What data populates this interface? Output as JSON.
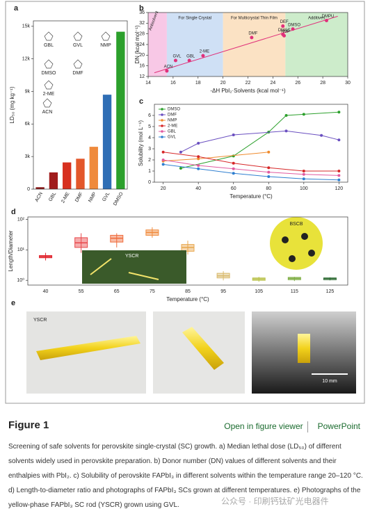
{
  "chart_data": [
    {
      "type": "bar",
      "panel": "a",
      "ylabel": "LD₅₀ (mg kg⁻¹)",
      "categories": [
        "ACN",
        "GBL",
        "2-ME",
        "DMF",
        "NMP",
        "GVL",
        "DMSO"
      ],
      "values": [
        175,
        1540,
        2460,
        2800,
        3900,
        8700,
        14500
      ],
      "colors": [
        "#8b1a1a",
        "#a01c1c",
        "#d7301f",
        "#e3572b",
        "#ef8a3c",
        "#2f6eb5",
        "#2ca02c"
      ],
      "ylim": [
        0,
        15500
      ],
      "yticks": [
        0,
        {
          "value": 3000,
          "label": "3k"
        },
        {
          "value": 6000,
          "label": "6k"
        },
        {
          "value": 9000,
          "label": "9k"
        },
        {
          "value": 12000,
          "label": "12k"
        },
        {
          "value": 15000,
          "label": "15k"
        }
      ],
      "structures": [
        "GBL",
        "GVL",
        "NMP",
        "DMSO",
        "DMF",
        "2-ME",
        "ACN"
      ]
    },
    {
      "type": "scatter",
      "panel": "b",
      "xlabel": "-ΔH PbI₂·Solvents (kcal mol⁻¹)",
      "ylabel": "DN (kcal mol⁻¹)",
      "xlim": [
        14,
        30
      ],
      "xticks": [
        14,
        16,
        18,
        20,
        22,
        24,
        26,
        28,
        30
      ],
      "ylim": [
        12,
        36
      ],
      "yticks": [
        12,
        16,
        20,
        24,
        28,
        32,
        36
      ],
      "regions": [
        {
          "label": "Antisolvent",
          "range": [
            14,
            15.5
          ],
          "color": "#f8c8e6"
        },
        {
          "label": "For Single Crystal",
          "range": [
            15.5,
            20
          ],
          "color": "#cfe0f5"
        },
        {
          "label": "For Multicrystal Thin Film",
          "range": [
            20,
            25
          ],
          "color": "#fbe2c4"
        },
        {
          "label": "Additives",
          "range": [
            25,
            30
          ],
          "color": "#cdeccb"
        }
      ],
      "color": "#e0307a",
      "points": {
        "labels": [
          "ACN",
          "GVL",
          "GBL",
          "2-ME",
          "DMF",
          "DEF",
          "DMAC",
          "NMP",
          "DMSO",
          "DMPU"
        ],
        "x": [
          15.5,
          16.2,
          17.3,
          18.4,
          22.3,
          24.8,
          24.8,
          24.9,
          25.6,
          28.3
        ],
        "y": [
          14.1,
          18,
          18,
          19.8,
          26.6,
          30.9,
          27.8,
          27.3,
          29.8,
          33
        ]
      },
      "fit": {
        "x": [
          14.5,
          29.2
        ],
        "y": [
          13.4,
          34.6
        ]
      }
    },
    {
      "type": "line",
      "panel": "c",
      "xlabel": "Temperature (°C)",
      "ylabel": "Solubility (mol L⁻¹)",
      "xlim": [
        15,
        125
      ],
      "xticks": [
        20,
        40,
        60,
        80,
        100,
        120
      ],
      "ylim": [
        0,
        7
      ],
      "yticks": [
        0,
        1,
        2,
        3,
        4,
        5,
        6
      ],
      "legend": "top-left",
      "series": [
        {
          "name": "DMSO",
          "color": "#2ca02c",
          "x": [
            30,
            60,
            80,
            90,
            100,
            120
          ],
          "values": [
            1.25,
            2.35,
            4.5,
            6.0,
            6.1,
            6.3
          ]
        },
        {
          "name": "DMF",
          "color": "#6a4fc0",
          "x": [
            30,
            40,
            60,
            90,
            110,
            120
          ],
          "values": [
            2.7,
            3.5,
            4.25,
            4.6,
            4.2,
            3.8
          ]
        },
        {
          "name": "NMP",
          "color": "#ef8a2c",
          "x": [
            20,
            40,
            80
          ],
          "values": [
            1.9,
            2.1,
            2.7
          ]
        },
        {
          "name": "2-ME",
          "color": "#d62728",
          "x": [
            20,
            40,
            60,
            80,
            100,
            120
          ],
          "values": [
            2.7,
            2.3,
            1.7,
            1.3,
            1.0,
            1.0
          ]
        },
        {
          "name": "GBL",
          "color": "#e05aa0",
          "x": [
            20,
            40,
            60,
            80,
            100,
            120
          ],
          "values": [
            2.0,
            1.5,
            1.2,
            0.9,
            0.7,
            0.6
          ]
        },
        {
          "name": "GVL",
          "color": "#2f7fd0",
          "x": [
            20,
            40,
            60,
            80,
            100,
            120
          ],
          "values": [
            1.6,
            1.2,
            0.8,
            0.5,
            0.3,
            0.2
          ]
        }
      ]
    },
    {
      "type": "box",
      "panel": "d",
      "xlabel": "Temperature (°C)",
      "ylabel": "Length/Diameter",
      "categories": [
        "40",
        "55",
        "65",
        "75",
        "85",
        "95",
        "105",
        "115",
        "125"
      ],
      "log": true,
      "ylim": [
        0.7,
        120
      ],
      "yticks": [
        {
          "value": 1,
          "label": "10⁰"
        },
        {
          "value": 10,
          "label": "10¹"
        },
        {
          "value": 100,
          "label": "10²"
        }
      ],
      "colors": [
        "#e0202a",
        "#e8474a",
        "#ef6a3a",
        "#f08a3c",
        "#e8a74d",
        "#d8b86a",
        "#b9c24a",
        "#7fae45",
        "#2e6b34"
      ],
      "boxes": [
        {
          "min": 4.5,
          "q1": 5.5,
          "median": 6,
          "q3": 6.5,
          "max": 8
        },
        {
          "min": 8,
          "q1": 12,
          "median": 17,
          "q3": 25,
          "max": 35
        },
        {
          "min": 12,
          "q1": 18,
          "median": 24,
          "q3": 30,
          "max": 35
        },
        {
          "min": 25,
          "q1": 30,
          "median": 37,
          "q3": 45,
          "max": 55
        },
        {
          "min": 7,
          "q1": 9,
          "median": 12,
          "q3": 15,
          "max": 20
        },
        {
          "min": 1.0,
          "q1": 1.2,
          "median": 1.4,
          "q3": 1.7,
          "max": 2.0
        },
        {
          "min": 0.9,
          "q1": 1.0,
          "median": 1.1,
          "q3": 1.2,
          "max": 1.3
        },
        {
          "min": 0.95,
          "q1": 1.05,
          "median": 1.15,
          "q3": 1.25,
          "max": 1.3
        },
        {
          "min": 1.0,
          "q1": 1.05,
          "median": 1.15,
          "q3": 1.2,
          "max": 1.25
        }
      ],
      "photo_labels": [
        "YSCR",
        "BSCB"
      ]
    }
  ],
  "panel_e": {
    "label": "e",
    "photo_label": "YSCR",
    "scale_bar": "10 mm"
  },
  "figure": {
    "title": "Figure 1",
    "viewer_link": "Open in figure viewer",
    "powerpoint_link": "PowerPoint",
    "caption": "Screening of safe solvents for perovskite single-crystal (SC) growth. a) Median lethal dose (LD₅₀) of different solvents widely used in perovskite preparation. b) Donor number (DN) values of different solvents and their enthalpies with PbI₂. c) Solubility of perovskite FAPbI₃ in different solvents within the temperature range 20–120 °C. d) Length-to-diameter ratio and photographs of FAPbI₃ SCs grown at different temperatures. e) Photographs of the yellow-phase FAPbI₃ SC rod (YSCR) grown using GVL.",
    "watermark": "公众号 · 印刷钙钛矿光电器件"
  }
}
